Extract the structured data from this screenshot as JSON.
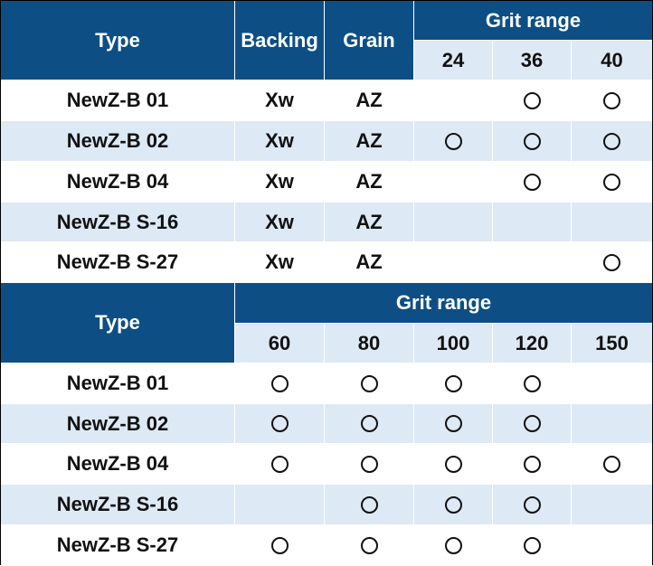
{
  "colors": {
    "header_bg": "#0d4f84",
    "header_text": "#ffffff",
    "stripe": "#dde9f5",
    "row": "#ffffff"
  },
  "mark_icon": "circle-mark",
  "table1": {
    "headers": {
      "type": "Type",
      "backing": "Backing",
      "grain": "Grain",
      "grit_range": "Grit range"
    },
    "grits": [
      "24",
      "36",
      "40"
    ],
    "rows": [
      {
        "type": "NewZ-B 01",
        "backing": "Xw",
        "grain": "AZ",
        "marks": [
          false,
          true,
          true
        ]
      },
      {
        "type": "NewZ-B 02",
        "backing": "Xw",
        "grain": "AZ",
        "marks": [
          true,
          true,
          true
        ]
      },
      {
        "type": "NewZ-B 04",
        "backing": "Xw",
        "grain": "AZ",
        "marks": [
          false,
          true,
          true
        ]
      },
      {
        "type": "NewZ-B S-16",
        "backing": "Xw",
        "grain": "AZ",
        "marks": [
          false,
          false,
          false
        ]
      },
      {
        "type": "NewZ-B S-27",
        "backing": "Xw",
        "grain": "AZ",
        "marks": [
          false,
          false,
          true
        ]
      }
    ]
  },
  "table2": {
    "headers": {
      "type": "Type",
      "grit_range": "Grit range"
    },
    "grits": [
      "60",
      "80",
      "100",
      "120",
      "150"
    ],
    "rows": [
      {
        "type": "NewZ-B 01",
        "marks": [
          true,
          true,
          true,
          true,
          false
        ]
      },
      {
        "type": "NewZ-B 02",
        "marks": [
          true,
          true,
          true,
          true,
          false
        ]
      },
      {
        "type": "NewZ-B 04",
        "marks": [
          true,
          true,
          true,
          true,
          true
        ]
      },
      {
        "type": "NewZ-B S-16",
        "marks": [
          false,
          true,
          true,
          true,
          false
        ]
      },
      {
        "type": "NewZ-B S-27",
        "marks": [
          true,
          true,
          true,
          true,
          false
        ]
      }
    ]
  }
}
